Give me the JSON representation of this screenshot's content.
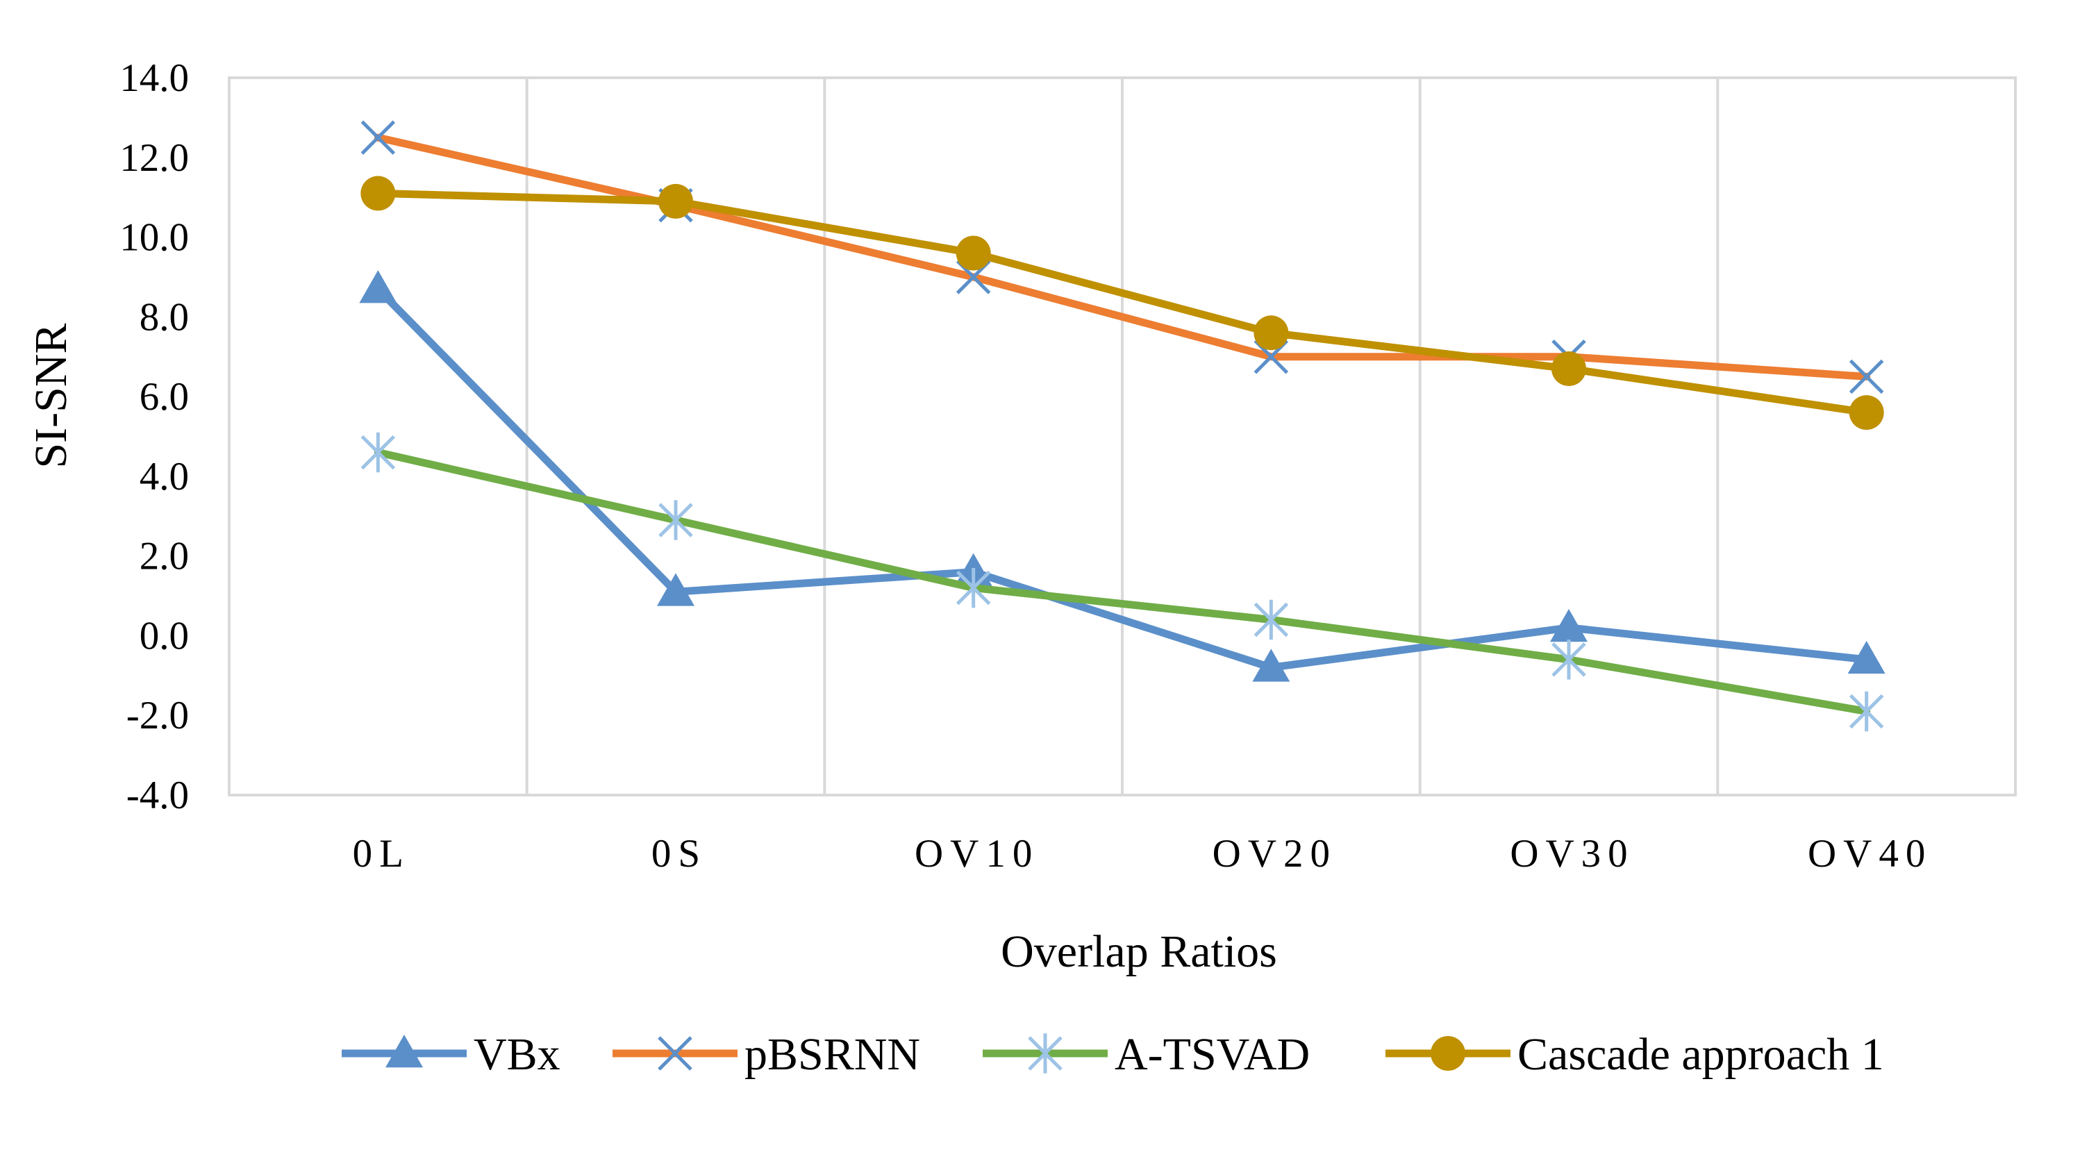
{
  "chart_data": {
    "type": "line",
    "title": "",
    "xlabel": "Overlap Ratios",
    "ylabel": "SI-SNR",
    "categories": [
      "0L",
      "0S",
      "OV10",
      "OV20",
      "OV30",
      "OV40"
    ],
    "ylim": [
      -4.0,
      14.0
    ],
    "ytick_step": 2.0,
    "yticks": [
      "-4.0",
      "-2.0",
      "0.0",
      "2.0",
      "4.0",
      "6.0",
      "8.0",
      "10.0",
      "12.0",
      "14.0"
    ],
    "grid": "vertical",
    "legend_position": "bottom",
    "series": [
      {
        "name": "VBx",
        "values": [
          8.7,
          1.1,
          1.6,
          -0.8,
          0.2,
          -0.6
        ],
        "color": "#5B8FC9",
        "marker": "triangle"
      },
      {
        "name": "pBSRNN",
        "values": [
          12.5,
          10.8,
          9.0,
          7.0,
          7.0,
          6.5
        ],
        "color": "#ED7D31",
        "marker": "x",
        "marker_color": "#5B8FC9"
      },
      {
        "name": "A-TSVAD",
        "values": [
          4.6,
          2.9,
          1.2,
          0.4,
          -0.6,
          -1.9
        ],
        "color": "#70AD47",
        "marker": "asterisk",
        "marker_color": "#9DC3E6"
      },
      {
        "name": "Cascade approach 1",
        "values": [
          11.1,
          10.9,
          9.6,
          7.6,
          6.7,
          5.6
        ],
        "color": "#BF9000",
        "marker": "circle"
      }
    ]
  }
}
